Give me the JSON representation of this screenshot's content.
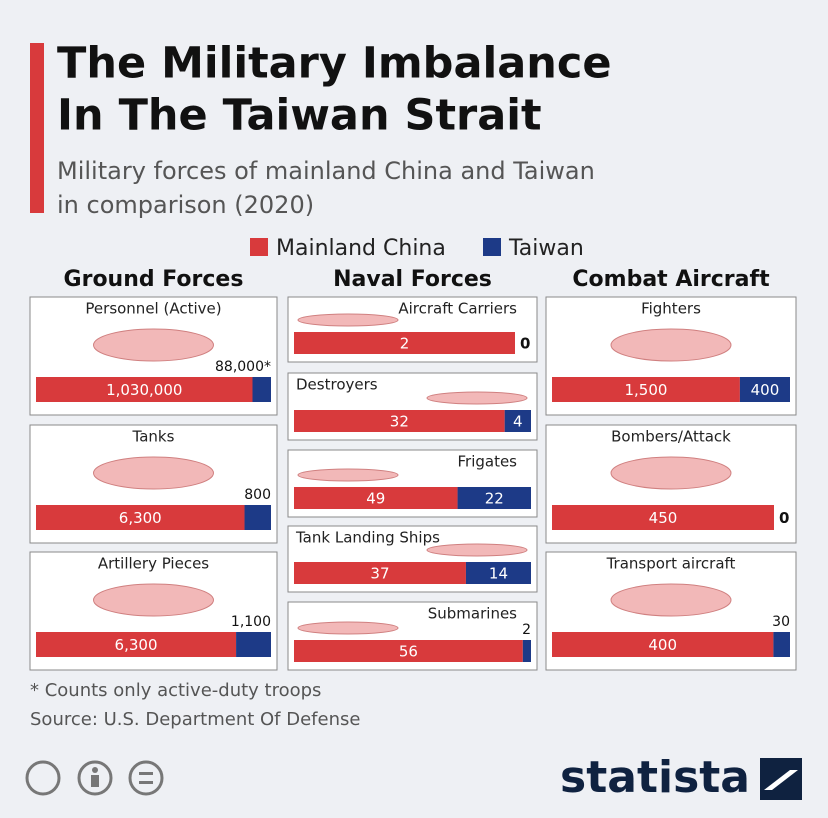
{
  "chart_data": {
    "type": "stacked-bar",
    "title": [
      "The Military Imbalance",
      "In The Taiwan Strait"
    ],
    "subtitle": [
      "Military forces of mainland China and Taiwan",
      "in comparison (2020)"
    ],
    "legend": [
      {
        "name": "Mainland China",
        "color": "#d83a3c"
      },
      {
        "name": "Taiwan",
        "color": "#1d3a87"
      }
    ],
    "groups": [
      {
        "name": "Ground Forces",
        "categories": [
          "Personnel (Active)",
          "Tanks",
          "Artillery Pieces"
        ],
        "series": [
          {
            "values": [
              1030000,
              6300,
              6300
            ],
            "value_labels": [
              "1,030,000",
              "6,300",
              "6,300"
            ]
          },
          {
            "values": [
              88000,
              800,
              1100
            ],
            "value_labels": [
              "88,000*",
              "800",
              "1,100"
            ]
          }
        ]
      },
      {
        "name": "Naval Forces",
        "categories": [
          "Aircraft Carriers",
          "Destroyers",
          "Frigates",
          "Tank Landing Ships",
          "Submarines"
        ],
        "series": [
          {
            "values": [
              2,
              32,
              49,
              37,
              56
            ]
          },
          {
            "values": [
              0,
              4,
              22,
              14,
              2
            ]
          }
        ]
      },
      {
        "name": "Combat Aircraft",
        "categories": [
          "Fighters",
          "Bombers/Attack",
          "Transport aircraft"
        ],
        "series": [
          {
            "values": [
              1500,
              450,
              400
            ],
            "value_labels": [
              "1,500",
              "450",
              "400"
            ]
          },
          {
            "values": [
              400,
              0,
              30
            ]
          }
        ]
      }
    ],
    "notes": [
      "* Counts only active-duty troops",
      "Source: U.S. Department Of Defense"
    ],
    "brand": "statista"
  }
}
